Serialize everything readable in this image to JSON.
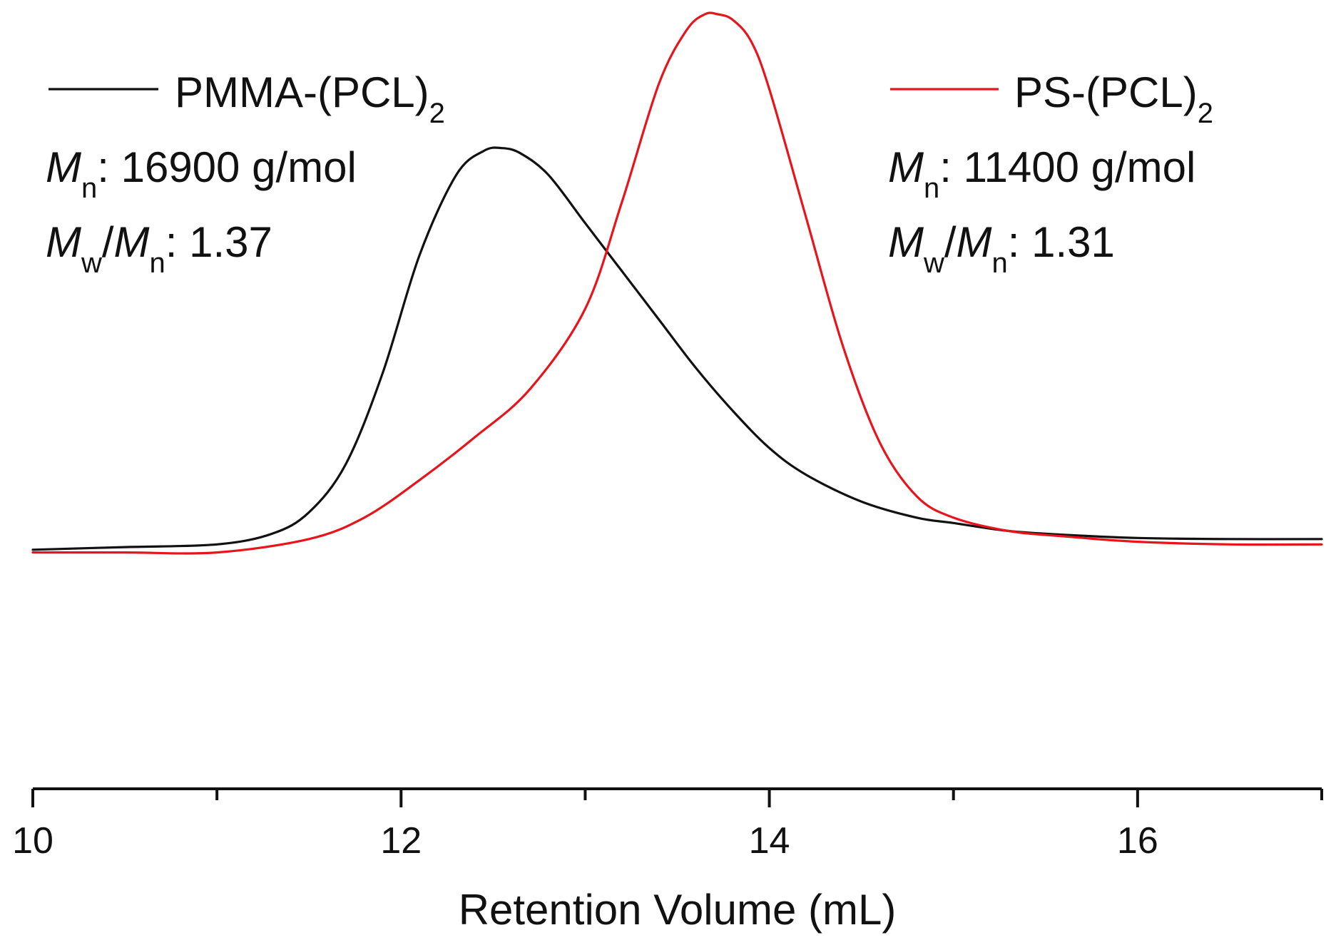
{
  "chart_data": {
    "type": "line",
    "title": "",
    "xlabel": "Retention Volume (mL)",
    "ylabel": "",
    "xlim": [
      10,
      17
    ],
    "ylim": [
      -0.22,
      1.0
    ],
    "xticks": [
      10,
      12,
      14,
      16
    ],
    "x_tick_labels": [
      "10",
      "12",
      "14",
      "16"
    ],
    "y_axis_shown": false,
    "grid": false,
    "legend_placement": "top-left and top-right",
    "series": [
      {
        "name": "PMMA-(PCL)2",
        "name_main": "PMMA-(PCL)",
        "name_sub": "2",
        "color": "#111111",
        "x": [
          10.0,
          10.5,
          11.0,
          11.3,
          11.5,
          11.7,
          11.9,
          12.1,
          12.3,
          12.45,
          12.55,
          12.65,
          12.8,
          13.0,
          13.2,
          13.4,
          13.6,
          13.8,
          14.0,
          14.2,
          14.5,
          14.8,
          15.0,
          15.3,
          15.6,
          16.0,
          16.5,
          17.0
        ],
        "y": [
          0.0,
          0.005,
          0.01,
          0.03,
          0.07,
          0.16,
          0.33,
          0.55,
          0.7,
          0.745,
          0.75,
          0.74,
          0.7,
          0.61,
          0.52,
          0.43,
          0.34,
          0.26,
          0.19,
          0.14,
          0.09,
          0.06,
          0.05,
          0.035,
          0.028,
          0.022,
          0.02,
          0.02
        ]
      },
      {
        "name": "PS-(PCL)2",
        "name_main": "PS-(PCL)",
        "name_sub": "2",
        "color": "#e8141c",
        "x": [
          10.0,
          10.5,
          11.0,
          11.5,
          11.8,
          12.1,
          12.4,
          12.7,
          13.0,
          13.2,
          13.4,
          13.55,
          13.65,
          13.72,
          13.8,
          13.9,
          14.0,
          14.2,
          14.4,
          14.6,
          14.8,
          15.0,
          15.3,
          15.6,
          16.0,
          16.5,
          17.0
        ],
        "y": [
          -0.005,
          -0.005,
          -0.005,
          0.02,
          0.06,
          0.13,
          0.21,
          0.3,
          0.45,
          0.65,
          0.87,
          0.97,
          1.0,
          1.0,
          0.99,
          0.95,
          0.86,
          0.62,
          0.38,
          0.2,
          0.1,
          0.06,
          0.035,
          0.025,
          0.015,
          0.01,
          0.01
        ]
      }
    ],
    "annotations": [
      {
        "series": "PMMA-(PCL)2",
        "mn_symbol": "M",
        "mn_sub": "n",
        "mn_text": ": 16900 g/mol",
        "pdi_symbol_1": "M",
        "pdi_sub_1": "w",
        "pdi_slash": "/",
        "pdi_symbol_2": "M",
        "pdi_sub_2": "n",
        "pdi_text": ": 1.37"
      },
      {
        "series": "PS-(PCL)2",
        "mn_symbol": "M",
        "mn_sub": "n",
        "mn_text": ": 11400 g/mol",
        "pdi_symbol_1": "M",
        "pdi_sub_1": "w",
        "pdi_slash": "/",
        "pdi_symbol_2": "M",
        "pdi_sub_2": "n",
        "pdi_text": ": 1.31"
      }
    ]
  }
}
